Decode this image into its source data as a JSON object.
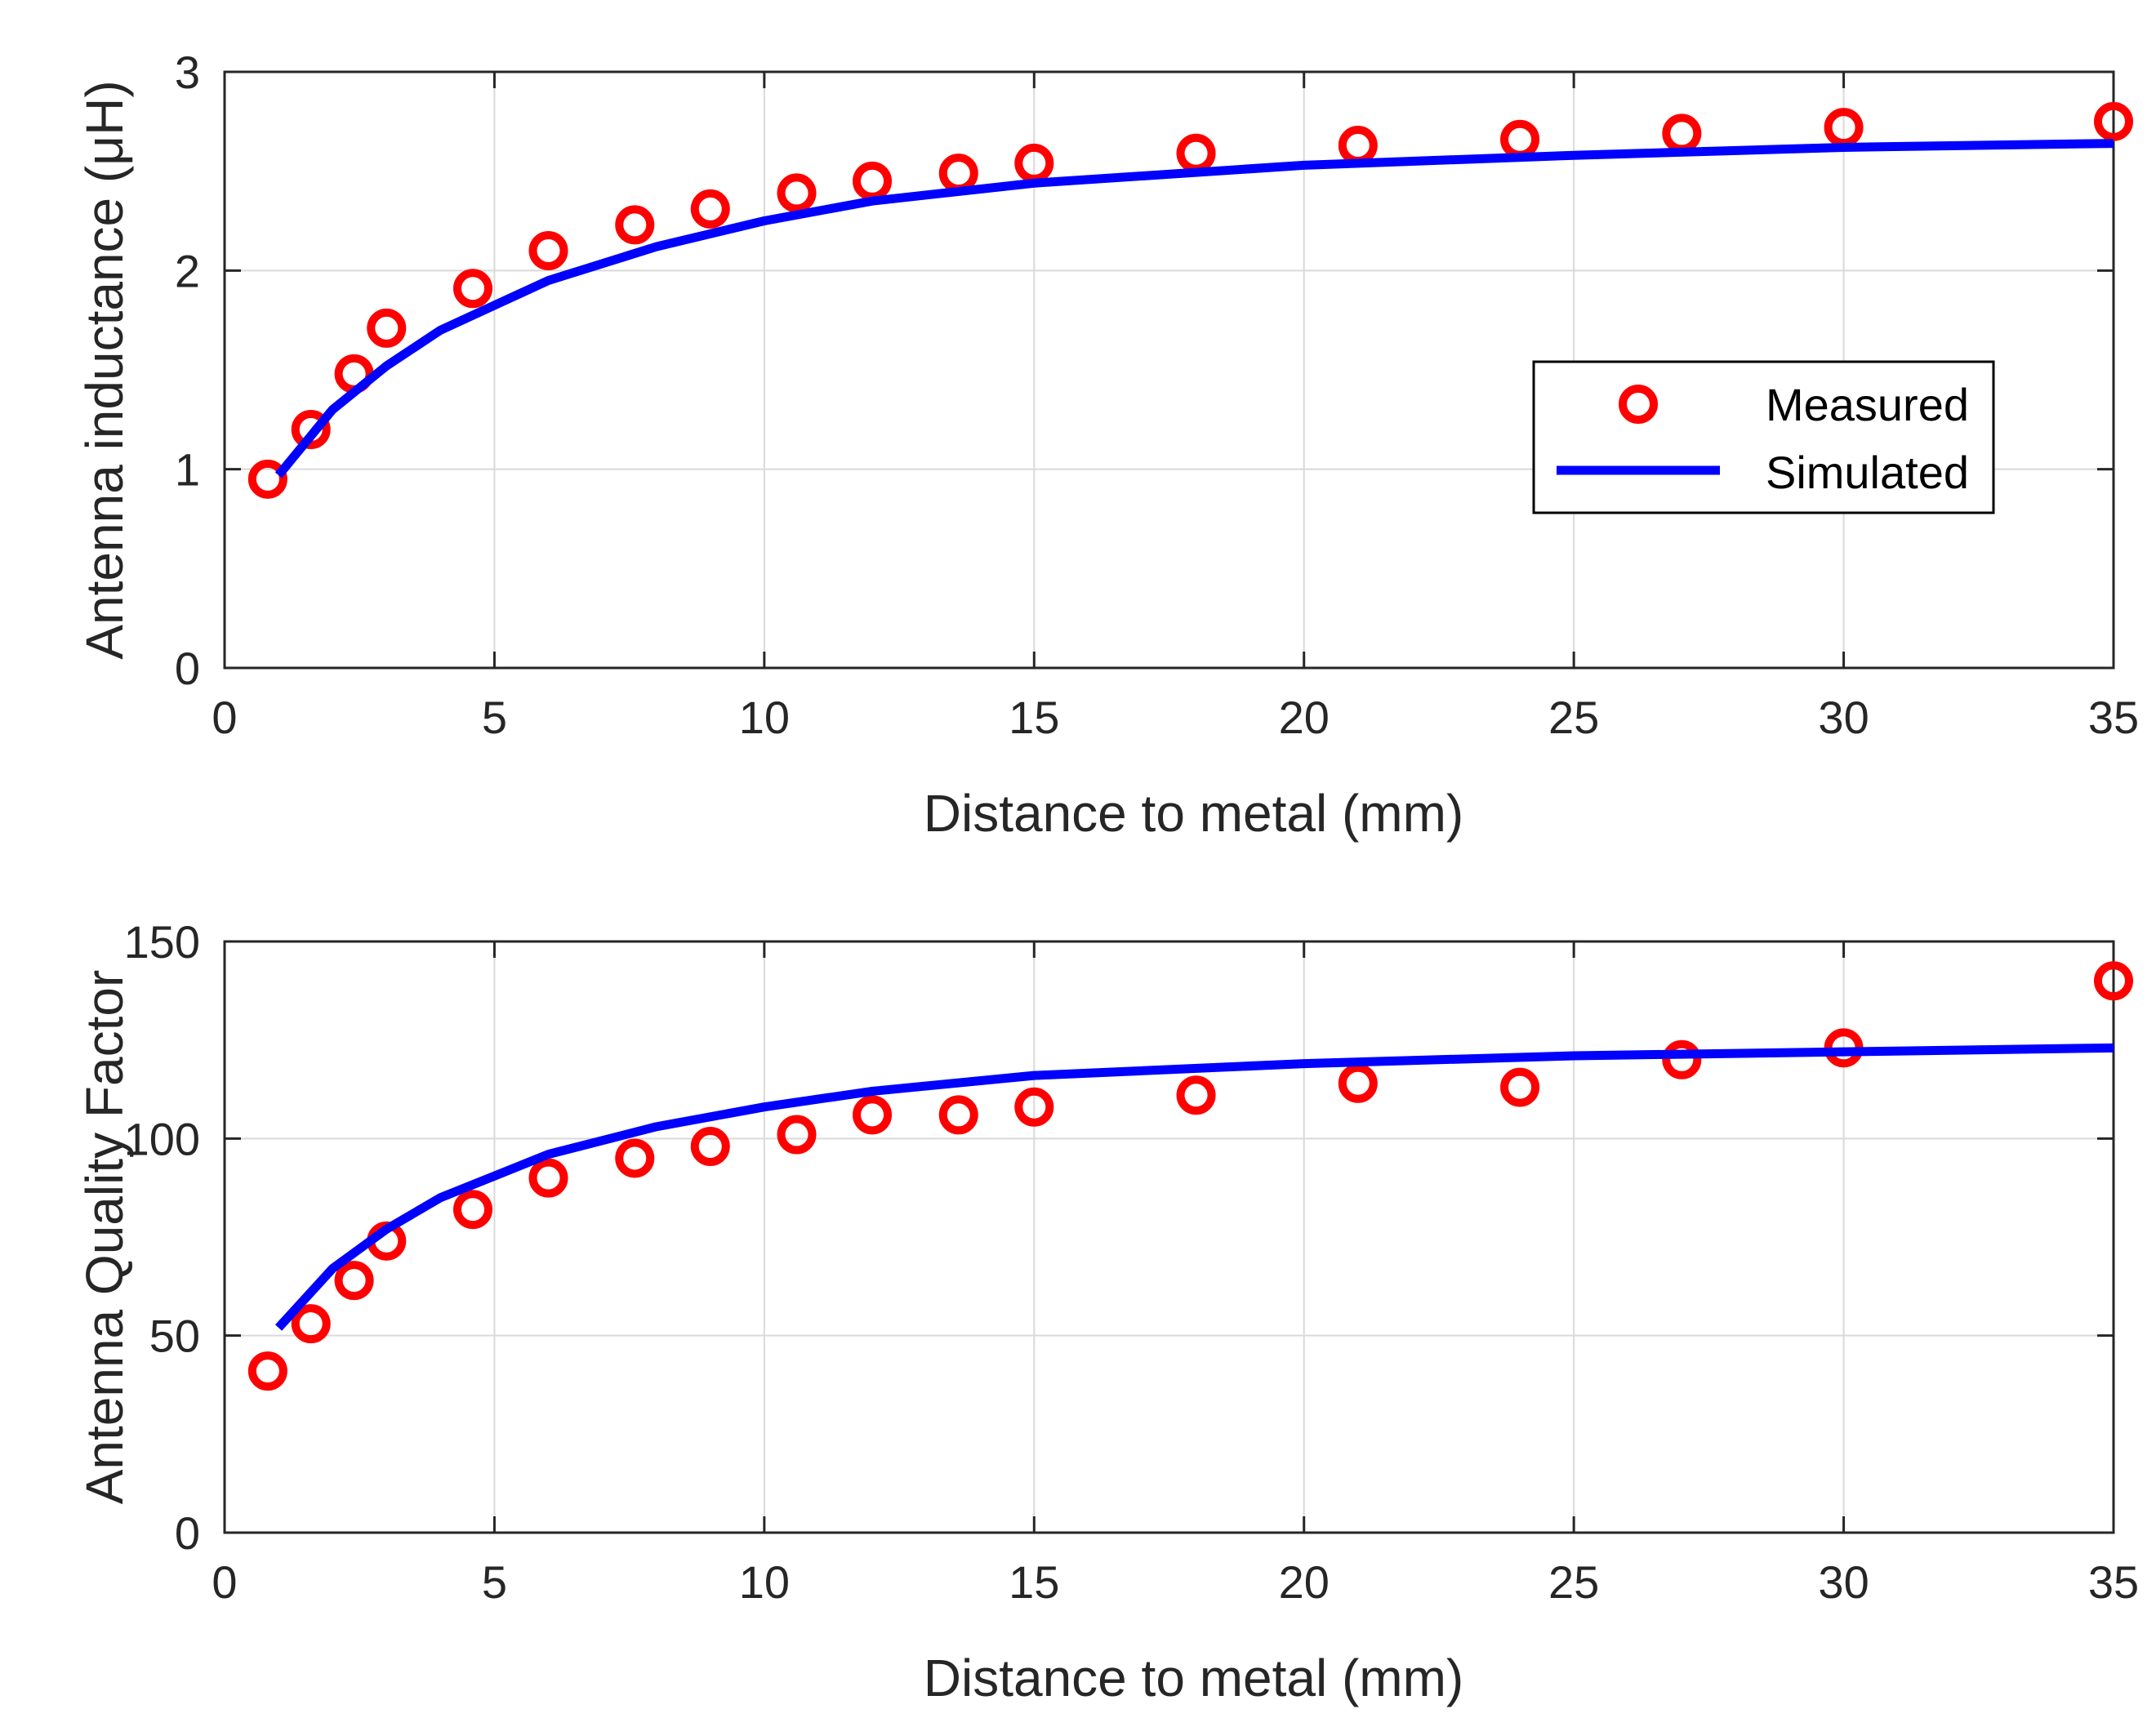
{
  "chart_data": [
    {
      "type": "scatter+line",
      "title": "",
      "xlabel": "Distance to metal (mm)",
      "ylabel": "Antenna inductance (μH)",
      "xlim": [
        0,
        35
      ],
      "ylim": [
        0,
        3
      ],
      "xticks": [
        "0",
        "5",
        "10",
        "15",
        "20",
        "25",
        "30",
        "35"
      ],
      "yticks": [
        "0",
        "1",
        "2",
        "3"
      ],
      "grid": true,
      "legend": {
        "placement": "center-right",
        "entries": [
          "Measured",
          "Simulated"
        ]
      },
      "series": [
        {
          "name": "Measured",
          "style": "markers",
          "color": "#ff0000",
          "x": [
            0.8,
            1.6,
            2.4,
            3.0,
            4.6,
            6.0,
            7.6,
            9.0,
            10.6,
            12.0,
            13.6,
            15.0,
            18.0,
            21.0,
            24.0,
            27.0,
            30.0,
            35.0
          ],
          "y": [
            0.95,
            1.2,
            1.48,
            1.71,
            1.91,
            2.1,
            2.23,
            2.31,
            2.39,
            2.45,
            2.49,
            2.54,
            2.59,
            2.63,
            2.66,
            2.69,
            2.72,
            2.75
          ]
        },
        {
          "name": "Simulated",
          "style": "line",
          "color": "#0000ff",
          "x": [
            1,
            2,
            3,
            4,
            6,
            8,
            10,
            12,
            15,
            20,
            25,
            30,
            35
          ],
          "y": [
            0.97,
            1.3,
            1.52,
            1.7,
            1.95,
            2.12,
            2.25,
            2.35,
            2.44,
            2.53,
            2.58,
            2.62,
            2.64
          ]
        }
      ]
    },
    {
      "type": "scatter+line",
      "title": "",
      "xlabel": "Distance to metal (mm)",
      "ylabel": "Antenna Quality Factor",
      "xlim": [
        0,
        35
      ],
      "ylim": [
        0,
        150
      ],
      "xticks": [
        "0",
        "5",
        "10",
        "15",
        "20",
        "25",
        "30",
        "35"
      ],
      "yticks": [
        "0",
        "50",
        "100",
        "150"
      ],
      "grid": true,
      "series": [
        {
          "name": "Measured",
          "style": "markers",
          "color": "#ff0000",
          "x": [
            0.8,
            1.6,
            2.4,
            3.0,
            4.6,
            6.0,
            7.6,
            9.0,
            10.6,
            12.0,
            13.6,
            15.0,
            18.0,
            21.0,
            24.0,
            27.0,
            30.0,
            35.0
          ],
          "y": [
            41,
            53,
            64,
            74,
            82,
            90,
            95,
            98,
            101,
            106,
            106,
            108,
            111,
            114,
            113,
            120,
            123,
            140
          ]
        },
        {
          "name": "Simulated",
          "style": "line",
          "color": "#0000ff",
          "x": [
            1,
            2,
            3,
            4,
            6,
            8,
            10,
            12,
            15,
            20,
            25,
            30,
            35
          ],
          "y": [
            52,
            67,
            77,
            85,
            96,
            103,
            108,
            112,
            116,
            119,
            121,
            122,
            123
          ]
        }
      ]
    }
  ]
}
